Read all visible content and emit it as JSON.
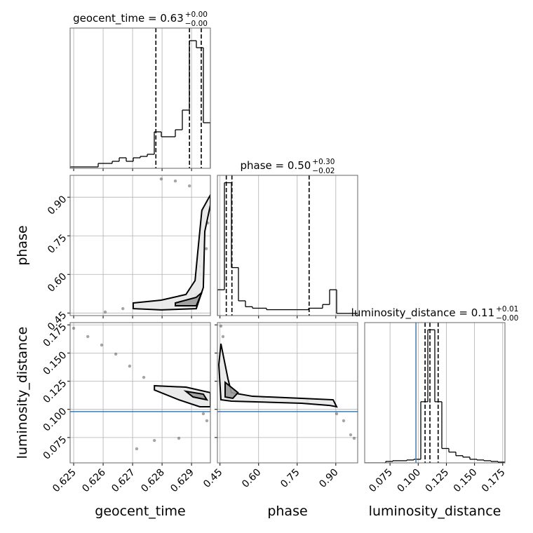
{
  "chart_data": [
    {
      "type": "histogram",
      "title": "geocent_time = 0.63",
      "title_upper": "+0.00",
      "title_lower": "−0.00",
      "bins": [
        0.62488,
        0.625118,
        0.625356,
        0.625594,
        0.625832,
        0.62607,
        0.626308,
        0.626546,
        0.626784,
        0.627022,
        0.62726,
        0.627498,
        0.627736,
        0.627974,
        0.628212,
        0.62845,
        0.628688,
        0.628926,
        0.629164,
        0.629402,
        0.62964
      ],
      "counts": [
        2,
        2,
        2,
        2,
        7,
        7,
        10,
        15,
        10,
        15,
        17,
        20,
        52,
        45,
        45,
        55,
        83,
        182,
        172,
        65
      ],
      "xlim": [
        0.62488,
        0.62964
      ],
      "ylim": [
        0,
        200
      ],
      "quantiles": [
        0.62779,
        0.62893,
        0.62933
      ],
      "color": "#000000"
    },
    {
      "type": "contour",
      "x": [
        0.62797,
        0.62845,
        0.62893,
        0.6294,
        0.62928,
        0.62916,
        0.62607,
        0.62667,
        0.6295,
        0.62955,
        0.6293
      ],
      "y": [
        0.971,
        0.963,
        0.944,
        0.849,
        0.631,
        0.522,
        0.454,
        0.467,
        0.7,
        0.8,
        0.6
      ],
      "contours": [
        {
          "x": [
            0.62702,
            0.62797,
            0.62881,
            0.62912,
            0.62921,
            0.62935,
            0.62964,
            0.62964,
            0.62945,
            0.6294,
            0.62916,
            0.62797,
            0.62702
          ],
          "y": [
            0.489,
            0.5,
            0.522,
            0.576,
            0.685,
            0.849,
            0.909,
            0.87,
            0.767,
            0.549,
            0.467,
            0.462,
            0.467
          ]
        },
        {
          "x": [
            0.62845,
            0.62916,
            0.62935,
            0.62916,
            0.62845
          ],
          "y": [
            0.489,
            0.511,
            0.53,
            0.478,
            0.478
          ]
        }
      ],
      "xlim": [
        0.62488,
        0.62964
      ],
      "ylim": [
        0.44,
        0.985
      ],
      "yticks": [
        0.45,
        {
          "value": 0.6,
          "label": "0.60"
        },
        0.75,
        {
          "value": 0.9,
          "label": "0.90"
        }
      ],
      "ylabel": "phase",
      "color": "#000000"
    },
    {
      "type": "histogram",
      "title": "phase = 0.50",
      "title_upper": "+0.30",
      "title_lower": "−0.02",
      "bins": [
        0.44,
        0.46725,
        0.4945,
        0.52175,
        0.549,
        0.57625,
        0.6035,
        0.63075,
        0.658,
        0.68525,
        0.7125,
        0.73975,
        0.767,
        0.79425,
        0.8215,
        0.84875,
        0.876,
        0.90325,
        0.9305,
        0.95775,
        0.985
      ],
      "counts": [
        35,
        180,
        65,
        20,
        12,
        10,
        10,
        8,
        8,
        8,
        8,
        8,
        8,
        10,
        10,
        15,
        35,
        3,
        3,
        3
      ],
      "xlim": [
        0.44,
        0.985
      ],
      "ylim": [
        0,
        190
      ],
      "quantiles": [
        0.4745,
        0.4964,
        0.7964
      ],
      "color": "#000000"
    },
    {
      "type": "contour",
      "x": [
        0.625,
        0.62548,
        0.62595,
        0.62643,
        0.6269,
        0.62738,
        0.62797,
        0.62952,
        0.6294,
        0.62774,
        0.62857,
        0.62714
      ],
      "y": [
        0.172,
        0.1646,
        0.1571,
        0.149,
        0.1384,
        0.1284,
        0.1197,
        0.0899,
        0.0961,
        0.0724,
        0.0743,
        0.065
      ],
      "contours": [
        {
          "x": [
            0.62774,
            0.62881,
            0.62964,
            0.62964,
            0.62928,
            0.62857,
            0.62774
          ],
          "y": [
            0.121,
            0.1197,
            0.1148,
            0.1023,
            0.1023,
            0.1085,
            0.1172
          ]
        },
        {
          "x": [
            0.62881,
            0.6294,
            0.62952,
            0.62905
          ],
          "y": [
            0.116,
            0.1135,
            0.1085,
            0.111
          ]
        }
      ],
      "xlim": [
        0.62488,
        0.62964
      ],
      "ylim": [
        0.0525,
        0.177
      ],
      "xticks": [
        0.625,
        0.626,
        0.627,
        0.628,
        0.629
      ],
      "yticks": [
        0.075,
        {
          "value": 0.1,
          "label": "0.100"
        },
        0.125,
        {
          "value": 0.15,
          "label": "0.150"
        },
        0.175
      ],
      "xlabel": "geocent_time",
      "ylabel": "luminosity_distance",
      "truth_y": 0.098,
      "truth_color": "#3f7bb5",
      "color": "#000000"
    },
    {
      "type": "contour",
      "x": [
        0.4536,
        0.4618,
        0.9033,
        0.9305,
        0.9578,
        0.9714,
        0.79,
        0.62
      ],
      "y": [
        0.1739,
        0.1646,
        0.0961,
        0.0899,
        0.0774,
        0.0743,
        0.1073,
        0.1098
      ],
      "contours": [
        {
          "x": [
            0.4536,
            0.4809,
            0.4945,
            0.5763,
            0.767,
            0.8896,
            0.9033,
            0.876,
            0.767,
            0.4945,
            0.4536,
            0.4455
          ],
          "y": [
            0.1583,
            0.1272,
            0.1148,
            0.1116,
            0.1098,
            0.1085,
            0.1023,
            0.1035,
            0.1054,
            0.1073,
            0.1085,
            0.1397
          ]
        },
        {
          "x": [
            0.47,
            0.52,
            0.5,
            0.47
          ],
          "y": [
            0.124,
            0.1148,
            0.1098,
            0.111
          ]
        }
      ],
      "xlim": [
        0.44,
        0.985
      ],
      "ylim": [
        0.0525,
        0.177
      ],
      "xticks": [
        0.45,
        {
          "value": 0.6,
          "label": "0.60"
        },
        0.75,
        {
          "value": 0.9,
          "label": "0.90"
        }
      ],
      "xlabel": "phase",
      "truth_y": 0.098,
      "truth_color": "#3f7bb5",
      "color": "#000000"
    },
    {
      "type": "histogram",
      "title": "luminosity_distance = 0.11",
      "title_upper": "+0.01",
      "title_lower": "−0.00",
      "bins": [
        0.0525,
        0.058725,
        0.06495,
        0.071175,
        0.0774,
        0.083625,
        0.08985,
        0.096075,
        0.1023,
        0.108525,
        0.11475,
        0.120975,
        0.1272,
        0.133425,
        0.13965,
        0.145875,
        0.1521,
        0.158325,
        0.16455,
        0.170775,
        0.177
      ],
      "counts": [
        0,
        0,
        0,
        2,
        3,
        3,
        4,
        5,
        85,
        185,
        85,
        20,
        15,
        10,
        8,
        5,
        4,
        3,
        2,
        1
      ],
      "xlim": [
        0.0525,
        0.177
      ],
      "ylim": [
        0,
        195
      ],
      "quantiles": [
        0.1061,
        0.1104,
        0.1177
      ],
      "xticks": [
        0.075,
        {
          "value": 0.1,
          "label": "0.100"
        },
        0.125,
        {
          "value": 0.15,
          "label": "0.150"
        },
        0.175
      ],
      "xlabel": "luminosity_distance",
      "truth": 0.098,
      "truth_color": "#3f7bb5",
      "color": "#000000"
    }
  ]
}
